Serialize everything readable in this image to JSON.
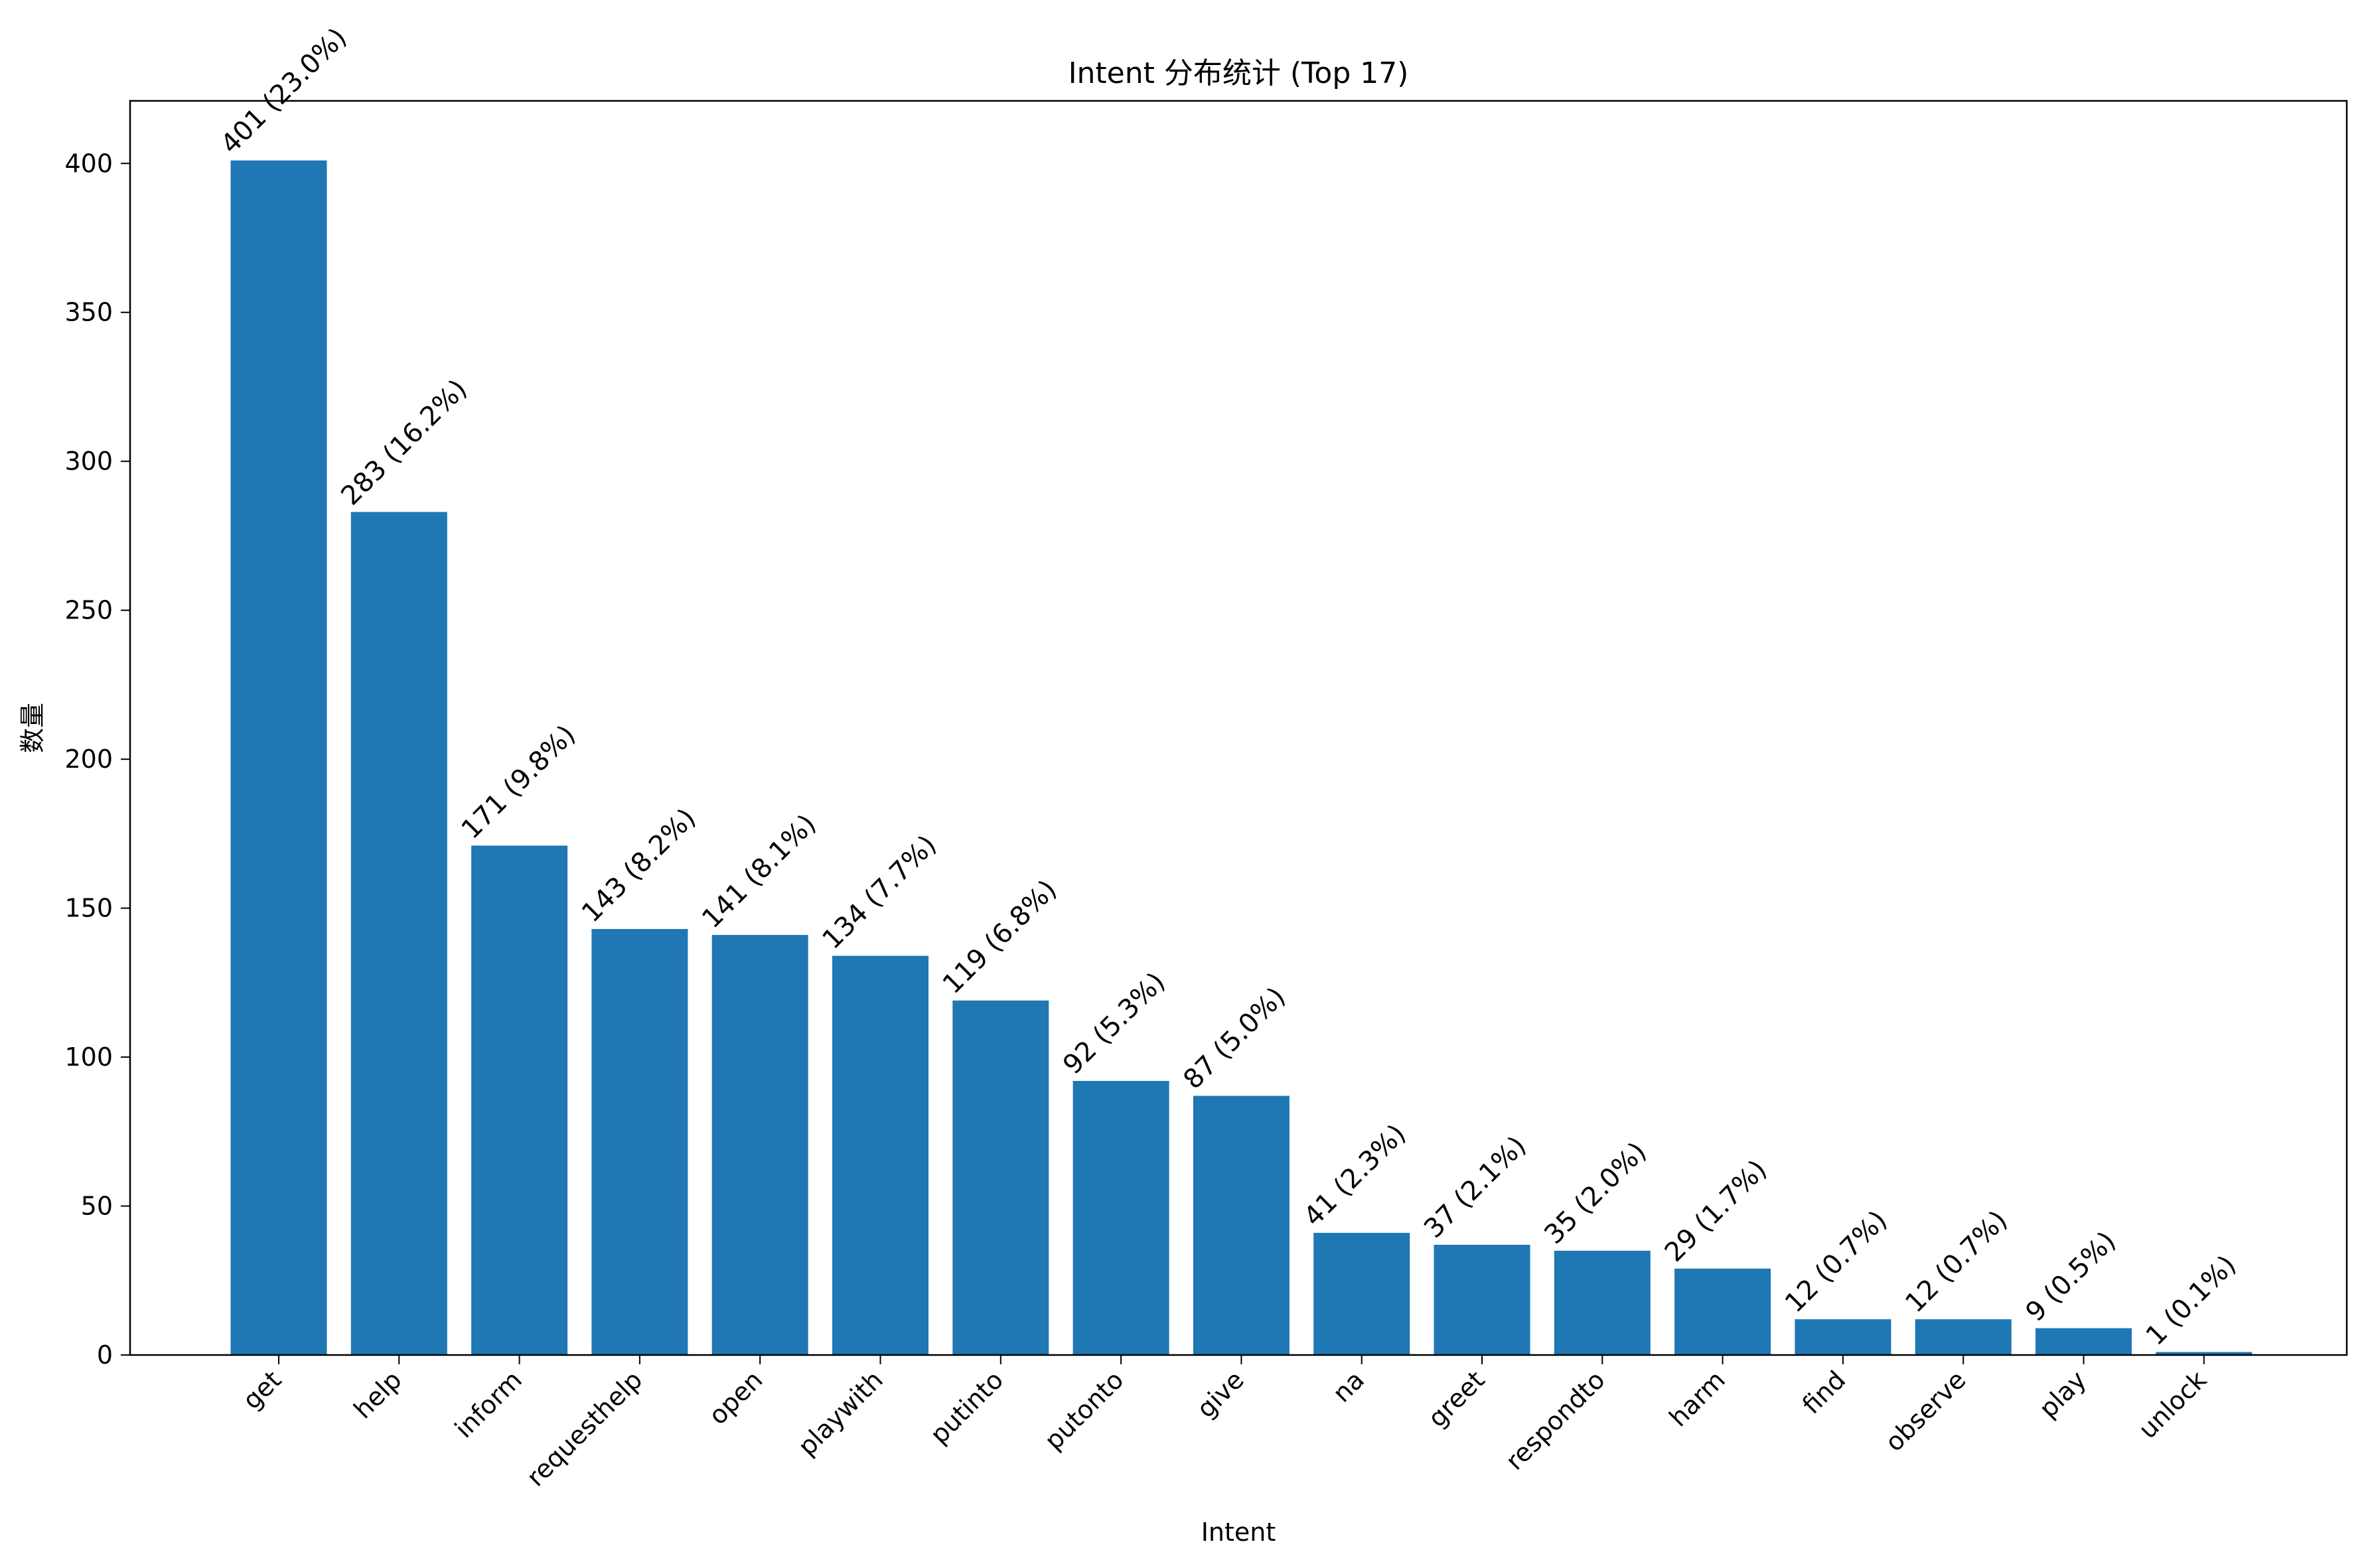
{
  "chart_data": {
    "type": "bar",
    "title": "Intent 分布统计 (Top 17)",
    "xlabel": "Intent",
    "ylabel": "数量",
    "categories": [
      "get",
      "help",
      "inform",
      "requesthelp",
      "open",
      "playwith",
      "putinto",
      "putonto",
      "give",
      "na",
      "greet",
      "respondto",
      "harm",
      "find",
      "observe",
      "play",
      "unlock"
    ],
    "values": [
      401,
      283,
      171,
      143,
      141,
      134,
      119,
      92,
      87,
      41,
      37,
      35,
      29,
      12,
      12,
      9,
      1
    ],
    "value_labels": [
      "401 (23.0%)",
      "283 (16.2%)",
      "171 (9.8%)",
      "143 (8.2%)",
      "141 (8.1%)",
      "134 (7.7%)",
      "119 (6.8%)",
      "92 (5.3%)",
      "87 (5.0%)",
      "41 (2.3%)",
      "37 (2.1%)",
      "35 (2.0%)",
      "29 (1.7%)",
      "12 (0.7%)",
      "12 (0.7%)",
      "9 (0.5%)",
      "1 (0.1%)"
    ],
    "ylim": [
      0,
      421
    ],
    "yticks": [
      0,
      50,
      100,
      150,
      200,
      250,
      300,
      350,
      400
    ],
    "bar_color": "#1f77b4",
    "grid": false,
    "legend": "none"
  }
}
